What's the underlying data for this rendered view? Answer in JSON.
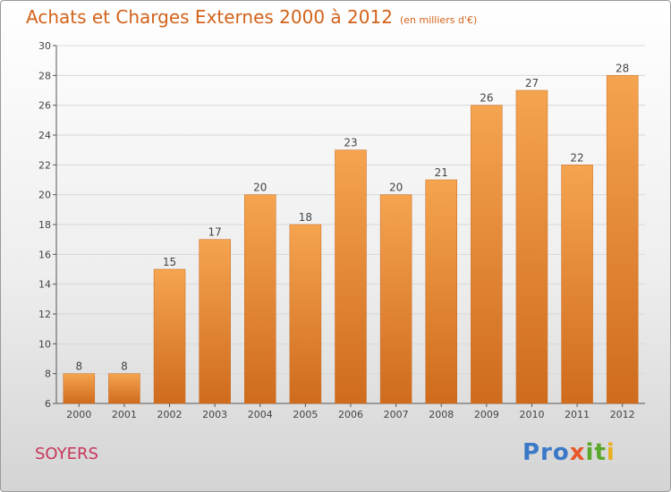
{
  "header": {
    "title": "Achats et Charges Externes 2000 à 2012",
    "subtitle": "(en milliers d'€)"
  },
  "commune": "SOYERS",
  "logo": {
    "text": "Proxiti",
    "parts": [
      "Pro",
      "x",
      "it",
      "i"
    ]
  },
  "colors": {
    "bar_top": "#f5a44f",
    "bar_bottom": "#cf6b1d",
    "title": "#d2621a",
    "commune": "#c8365a"
  },
  "chart_data": {
    "type": "bar",
    "title": "Achats et Charges Externes 2000 à 2012",
    "categories": [
      "2000",
      "2001",
      "2002",
      "2003",
      "2004",
      "2005",
      "2006",
      "2007",
      "2008",
      "2009",
      "2010",
      "2011",
      "2012"
    ],
    "values": [
      8,
      8,
      15,
      17,
      20,
      18,
      23,
      20,
      21,
      26,
      27,
      22,
      28
    ],
    "ylim": [
      6,
      30
    ],
    "yticks": [
      6,
      8,
      10,
      12,
      14,
      16,
      18,
      20,
      22,
      24,
      26,
      28,
      30
    ],
    "grid": true
  }
}
